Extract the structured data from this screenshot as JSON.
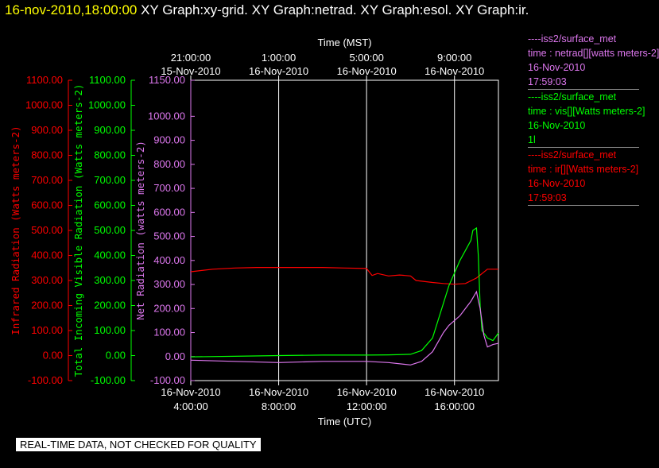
{
  "header": {
    "timestamp": "16-nov-2010,18:00:00",
    "graphs": [
      "XY Graph:xy-grid.",
      "XY Graph:netrad.",
      "XY Graph:esol.",
      "XY Graph:ir."
    ]
  },
  "colors": {
    "red": "#ff0000",
    "green": "#00ff00",
    "violet": "#dd77ee",
    "text": "#ffffff",
    "grid": "#ffffff"
  },
  "chart_data": {
    "type": "line",
    "top_axis": {
      "title": "Time (MST)",
      "ticks": [
        {
          "time": "21:00:00",
          "date": "15-Nov-2010"
        },
        {
          "time": "1:00:00",
          "date": "16-Nov-2010"
        },
        {
          "time": "5:00:00",
          "date": "16-Nov-2010"
        },
        {
          "time": "9:00:00",
          "date": "16-Nov-2010"
        }
      ]
    },
    "bottom_axis": {
      "title": "Time (UTC)",
      "xlim": [
        "16-Nov-2010 04:00:00",
        "16-Nov-2010 18:00:00"
      ],
      "ticks": [
        {
          "date": "16-Nov-2010",
          "time": "4:00:00"
        },
        {
          "date": "16-Nov-2010",
          "time": "8:00:00"
        },
        {
          "date": "16-Nov-2010",
          "time": "12:00:00"
        },
        {
          "date": "16-Nov-2010",
          "time": "16:00:00"
        }
      ]
    },
    "y_axes": [
      {
        "label": "Infrared Radiation (Watts meters-2)",
        "color": "red",
        "ylim": [
          -100,
          1100
        ],
        "ticks": [
          "-100.00",
          "0.00",
          "100.00",
          "200.00",
          "300.00",
          "400.00",
          "500.00",
          "600.00",
          "700.00",
          "800.00",
          "900.00",
          "1000.00",
          "1100.00"
        ]
      },
      {
        "label": "Total Incoming Visible Radiation (Watts meters-2)",
        "color": "green",
        "ylim": [
          -100,
          1100
        ],
        "ticks": [
          "-100.00",
          "0.00",
          "100.00",
          "200.00",
          "300.00",
          "400.00",
          "500.00",
          "600.00",
          "700.00",
          "800.00",
          "900.00",
          "1000.00",
          "1100.00"
        ]
      },
      {
        "label": "Net Radiation (watts meters-2)",
        "color": "violet",
        "ylim": [
          -100,
          1150
        ],
        "ticks": [
          "-100.00",
          "0.00",
          "100.00",
          "200.00",
          "300.00",
          "400.00",
          "500.00",
          "600.00",
          "700.00",
          "800.00",
          "900.00",
          "1000.00",
          "1150.00"
        ]
      }
    ],
    "series": [
      {
        "name": "ir",
        "color": "red",
        "axis": 0,
        "x": [
          "04:00",
          "05:00",
          "06:00",
          "07:00",
          "08:00",
          "09:00",
          "10:00",
          "11:00",
          "12:00",
          "12:15",
          "12:30",
          "13:00",
          "13:30",
          "14:00",
          "14:15",
          "15:00",
          "15:30",
          "16:00",
          "16:30",
          "17:00",
          "17:30",
          "18:00"
        ],
        "y": [
          335,
          345,
          350,
          352,
          352,
          352,
          352,
          350,
          348,
          320,
          328,
          318,
          322,
          318,
          300,
          292,
          288,
          285,
          288,
          310,
          345,
          345
        ]
      },
      {
        "name": "vis",
        "color": "green",
        "axis": 1,
        "x": [
          "04:00",
          "06:00",
          "08:00",
          "10:00",
          "12:00",
          "13:00",
          "14:00",
          "14:30",
          "15:00",
          "15:15",
          "15:30",
          "15:45",
          "16:00",
          "16:15",
          "16:30",
          "16:45",
          "16:50",
          "17:00",
          "17:05",
          "17:10",
          "17:15",
          "17:30",
          "17:45",
          "18:00"
        ],
        "y": [
          -5,
          -3,
          0,
          2,
          2,
          3,
          5,
          20,
          70,
          140,
          210,
          280,
          330,
          380,
          420,
          460,
          500,
          510,
          400,
          200,
          100,
          70,
          60,
          90
        ]
      },
      {
        "name": "netrad",
        "color": "violet",
        "axis": 2,
        "x": [
          "04:00",
          "06:00",
          "08:00",
          "10:00",
          "12:00",
          "13:00",
          "14:00",
          "14:30",
          "15:00",
          "15:15",
          "15:30",
          "15:45",
          "16:00",
          "16:15",
          "16:30",
          "16:45",
          "17:00",
          "17:10",
          "17:20",
          "17:30",
          "17:45",
          "18:00"
        ],
        "y": [
          -15,
          -20,
          -25,
          -20,
          -20,
          -25,
          -35,
          -20,
          20,
          60,
          100,
          130,
          150,
          170,
          200,
          230,
          270,
          200,
          90,
          40,
          50,
          55
        ]
      }
    ]
  },
  "legend": [
    {
      "color": "violet",
      "lines": [
        "----iss2/surface_met",
        "time : netrad[][watts meters-2]",
        "16-Nov-2010",
        "17:59:03"
      ]
    },
    {
      "color": "green",
      "lines": [
        "----iss2/surface_met",
        "time : vis[][Watts meters-2]",
        "16-Nov-2010",
        "1l"
      ]
    },
    {
      "color": "red",
      "lines": [
        "----iss2/surface_met",
        "time : ir[][Watts meters-2]",
        "16-Nov-2010",
        "17:59:03"
      ]
    }
  ],
  "footer": "REAL-TIME DATA, NOT CHECKED FOR QUALITY"
}
